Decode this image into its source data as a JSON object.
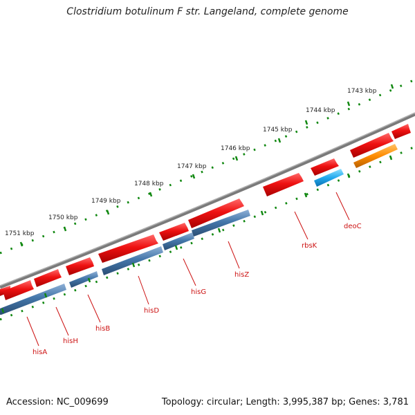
{
  "title": "Clostridium botulinum F str. Langeland, complete genome",
  "footer": {
    "accession": "Accession: NC_009699",
    "summary": "Topology: circular; Length: 3,995,387 bp; Genes: 3,781"
  },
  "colors": {
    "forward_gene": "#ee1111",
    "reverse_gene": "#4477aa",
    "rbsK_gene": "#22aaee",
    "deoC_gene": "#ff8c00",
    "backbone": "#777777",
    "ticks": "#118811",
    "label": "#cc1111"
  },
  "kbp_labels": [
    "1743 kbp",
    "1744 kbp",
    "1745 kbp",
    "1746 kbp",
    "1747 kbp",
    "1748 kbp",
    "1749 kbp",
    "1750 kbp",
    "1751 kbp"
  ],
  "gene_labels": [
    "hisA",
    "hisH",
    "hisB",
    "hisD",
    "hisG",
    "hisZ",
    "rbsK",
    "deoC"
  ]
}
